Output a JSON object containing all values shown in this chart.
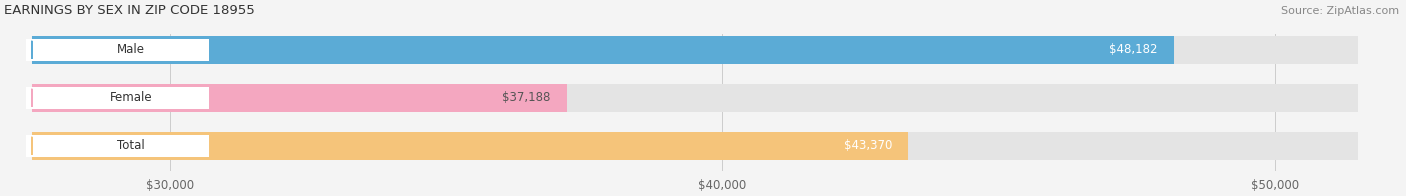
{
  "title": "EARNINGS BY SEX IN ZIP CODE 18955",
  "source": "Source: ZipAtlas.com",
  "categories": [
    "Male",
    "Female",
    "Total"
  ],
  "values": [
    48182,
    37188,
    43370
  ],
  "bar_colors": [
    "#5babd6",
    "#f4a7c0",
    "#f5c47a"
  ],
  "label_colors": [
    "white",
    "#555555",
    "white"
  ],
  "xmin": 27500,
  "xmax": 51500,
  "xticks": [
    30000,
    40000,
    50000
  ],
  "xtick_labels": [
    "$30,000",
    "$40,000",
    "$50,000"
  ],
  "bar_height": 0.58,
  "figsize": [
    14.06,
    1.96
  ],
  "dpi": 100,
  "background_color": "#f4f4f4",
  "bar_bg_color": "#e4e4e4"
}
